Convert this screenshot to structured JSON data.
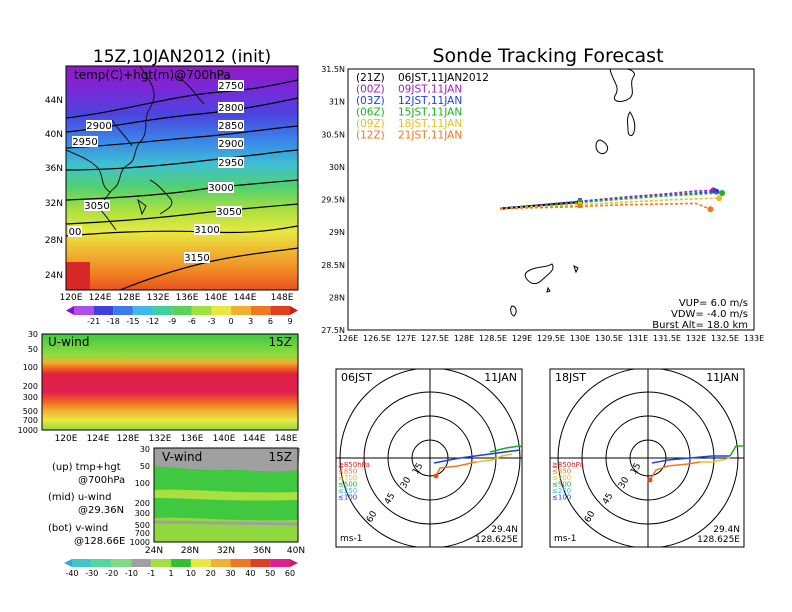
{
  "left_panel": {
    "title": "15Z,10JAN2012 (init)",
    "subtitle": "temp(C)+hgt(m)@700hPa",
    "lat_labels": [
      "44N",
      "40N",
      "36N",
      "32N",
      "28N",
      "24N"
    ],
    "lon_labels": [
      "120E",
      "124E",
      "128E",
      "132E",
      "136E",
      "140E",
      "144E",
      "148E"
    ],
    "contour_labels": [
      "2750",
      "2800",
      "2850",
      "2900",
      "2900",
      "2950",
      "2950",
      "3000",
      "3050",
      "3050",
      "3100",
      "3150",
      "00"
    ],
    "colorbar_ticks": [
      "-21",
      "-18",
      "-15",
      "-12",
      "-9",
      "-6",
      "-3",
      "0",
      "3",
      "6",
      "9"
    ],
    "colorbar_colors": [
      "#8c0fd0",
      "#b04fe8",
      "#4040e0",
      "#3c7af0",
      "#40b8e8",
      "#40d0a0",
      "#5ad25a",
      "#a0e040",
      "#e8e840",
      "#f0b030",
      "#f07820",
      "#e04020",
      "#c81e1e"
    ]
  },
  "uwind_panel": {
    "label": "U-wind",
    "time": "15Z",
    "pressure_labels": [
      "30",
      "50",
      "100",
      "200",
      "300",
      "500",
      "700",
      "1000"
    ],
    "lon_labels": [
      "120E",
      "124E",
      "128E",
      "132E",
      "136E",
      "140E",
      "144E",
      "148E"
    ]
  },
  "vwind_panel": {
    "label": "V-wind",
    "time": "15Z",
    "pressure_labels": [
      "30",
      "50",
      "100",
      "200",
      "300",
      "500",
      "700",
      "1000"
    ],
    "lat_labels": [
      "24N",
      "28N",
      "32N",
      "36N",
      "40N"
    ]
  },
  "legend_notes": {
    "up": "(up) tmp+hgt",
    "up_detail": "@700hPa",
    "mid": "(mid) u-wind",
    "mid_detail": "@29.36N",
    "bot": "(bot) v-wind",
    "bot_detail": "@128.66E"
  },
  "wind_colorbar": {
    "ticks": [
      "-40",
      "-30",
      "-20",
      "-10",
      "-1",
      "1",
      "10",
      "20",
      "30",
      "40",
      "50",
      "60"
    ],
    "colors": [
      "#30a8d8",
      "#40c8c8",
      "#50d8a0",
      "#80dc80",
      "#a0a0a0",
      "#a0e040",
      "#30c030",
      "#e8e840",
      "#f0b030",
      "#f07820",
      "#e04020",
      "#e01e8c",
      "#c81e64"
    ]
  },
  "tracking": {
    "title": "Sonde Tracking Forecast",
    "lat_labels": [
      "31.5N",
      "31N",
      "30.5N",
      "30N",
      "29.5N",
      "29N",
      "28.5N",
      "28N",
      "27.5N"
    ],
    "lon_labels": [
      "126E",
      "126.5E",
      "127E",
      "127.5E",
      "128E",
      "128.5E",
      "129E",
      "129.5E",
      "130E",
      "130.5E",
      "131E",
      "131.5E",
      "132E",
      "132.5E",
      "133E"
    ],
    "legend": [
      {
        "code": "(21Z)",
        "text": "06JST,11JAN2012",
        "color": "#000000"
      },
      {
        "code": "(00Z)",
        "text": "09JST,11JAN",
        "color": "#a020c0"
      },
      {
        "code": "(03Z)",
        "text": "12JST,11JAN",
        "color": "#2040e0"
      },
      {
        "code": "(06Z)",
        "text": "15JST,11JAN",
        "color": "#20b020"
      },
      {
        "code": "(09Z)",
        "text": "18JST,11JAN",
        "color": "#e8c020"
      },
      {
        "code": "(12Z)",
        "text": "21JST,11JAN",
        "color": "#f07820"
      }
    ],
    "vup": "VUP= 6.0 m/s",
    "vdw": "VDW= -4.0 m/s",
    "burst": "Burst Alt= 18.0 km"
  },
  "polar_left": {
    "time": "06JST",
    "date": "11JAN",
    "ring_labels": [
      "15",
      "30",
      "45",
      "60"
    ],
    "level_labels": [
      "≧850hPa",
      "≤850",
      "≤700",
      "≤500",
      "≤250",
      "≤100"
    ],
    "level_colors": [
      "#e02020",
      "#f07820",
      "#e8c020",
      "#20b020",
      "#40b8e8",
      "#2040e0"
    ],
    "units": "ms-1",
    "lat": "29.4N",
    "lon": "128.625E"
  },
  "polar_right": {
    "time": "18JST",
    "date": "11JAN",
    "ring_labels": [
      "15",
      "30",
      "45",
      "60"
    ],
    "level_labels": [
      "≧850hPa",
      "≤850",
      "≤700",
      "≤500",
      "≤250",
      "≤100"
    ],
    "level_colors": [
      "#e02020",
      "#f07820",
      "#e8c020",
      "#20b020",
      "#40b8e8",
      "#2040e0"
    ],
    "units": "ms-1",
    "lat": "29.4N",
    "lon": "128.625E"
  },
  "chart_data": [
    {
      "type": "line",
      "title": "Sonde Tracking Forecast",
      "xlabel": "",
      "ylabel": "",
      "xlim": [
        126,
        133
      ],
      "ylim": [
        27.5,
        31.5
      ],
      "grid": false,
      "legend_position": "top-left",
      "series": [
        {
          "name": "(21Z) 06JST,11JAN2012",
          "color": "#000000",
          "x": [
            128.62,
            128.9,
            129.3,
            129.7,
            130.0
          ],
          "y": [
            29.36,
            29.38,
            29.41,
            29.44,
            29.46
          ]
        },
        {
          "name": "(00Z) 09JST,11JAN",
          "color": "#a020c0",
          "x": [
            128.62,
            129.0,
            129.6,
            130.2,
            130.8,
            131.4,
            132.0,
            132.3
          ],
          "y": [
            29.36,
            29.39,
            29.44,
            29.49,
            29.54,
            29.58,
            29.63,
            29.64
          ]
        },
        {
          "name": "(03Z) 12JST,11JAN",
          "color": "#2040e0",
          "x": [
            128.62,
            129.0,
            129.6,
            130.2,
            130.8,
            131.4,
            132.0,
            132.35
          ],
          "y": [
            29.36,
            29.39,
            29.43,
            29.48,
            29.52,
            29.56,
            29.6,
            29.62
          ]
        },
        {
          "name": "(06Z) 15JST,11JAN",
          "color": "#20b020",
          "x": [
            128.62,
            129.0,
            129.6,
            130.2,
            130.8,
            131.4,
            132.0,
            132.45
          ],
          "y": [
            29.36,
            29.38,
            29.42,
            29.47,
            29.51,
            29.55,
            29.58,
            29.6
          ]
        },
        {
          "name": "(09Z) 18JST,11JAN",
          "color": "#e8c020",
          "x": [
            128.62,
            129.0,
            129.6,
            130.2,
            130.8,
            131.4,
            132.0,
            132.4
          ],
          "y": [
            29.36,
            29.38,
            29.4,
            29.43,
            29.46,
            29.49,
            29.51,
            29.52
          ]
        },
        {
          "name": "(12Z) 21JST,11JAN",
          "color": "#f07820",
          "x": [
            128.62,
            129.0,
            129.6,
            130.2,
            130.8,
            131.4,
            132.0,
            132.25
          ],
          "y": [
            29.36,
            29.37,
            29.38,
            29.4,
            29.42,
            29.43,
            29.44,
            29.35
          ]
        }
      ]
    }
  ]
}
